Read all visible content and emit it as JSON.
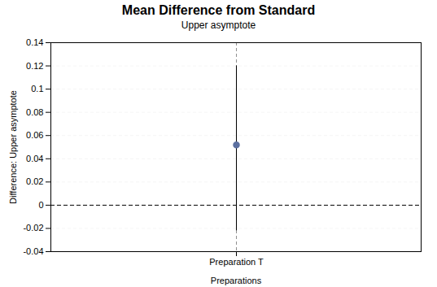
{
  "chart_data": {
    "type": "errorbar",
    "title": "Mean Difference from Standard",
    "subtitle": "Upper asymptote",
    "xlabel": "Preparations",
    "ylabel": "Difference: Upper asymptote",
    "categories": [
      "Preparation T"
    ],
    "values": [
      0.052
    ],
    "y_upper": [
      0.12
    ],
    "y_lower": [
      -0.022
    ],
    "hline": 0,
    "ylim": [
      -0.04,
      0.14
    ],
    "yticks": [
      -0.04,
      -0.02,
      0,
      0.02,
      0.04,
      0.06,
      0.08,
      0.1,
      0.12,
      0.14
    ],
    "grid": true,
    "color": "#5B6FA0"
  }
}
